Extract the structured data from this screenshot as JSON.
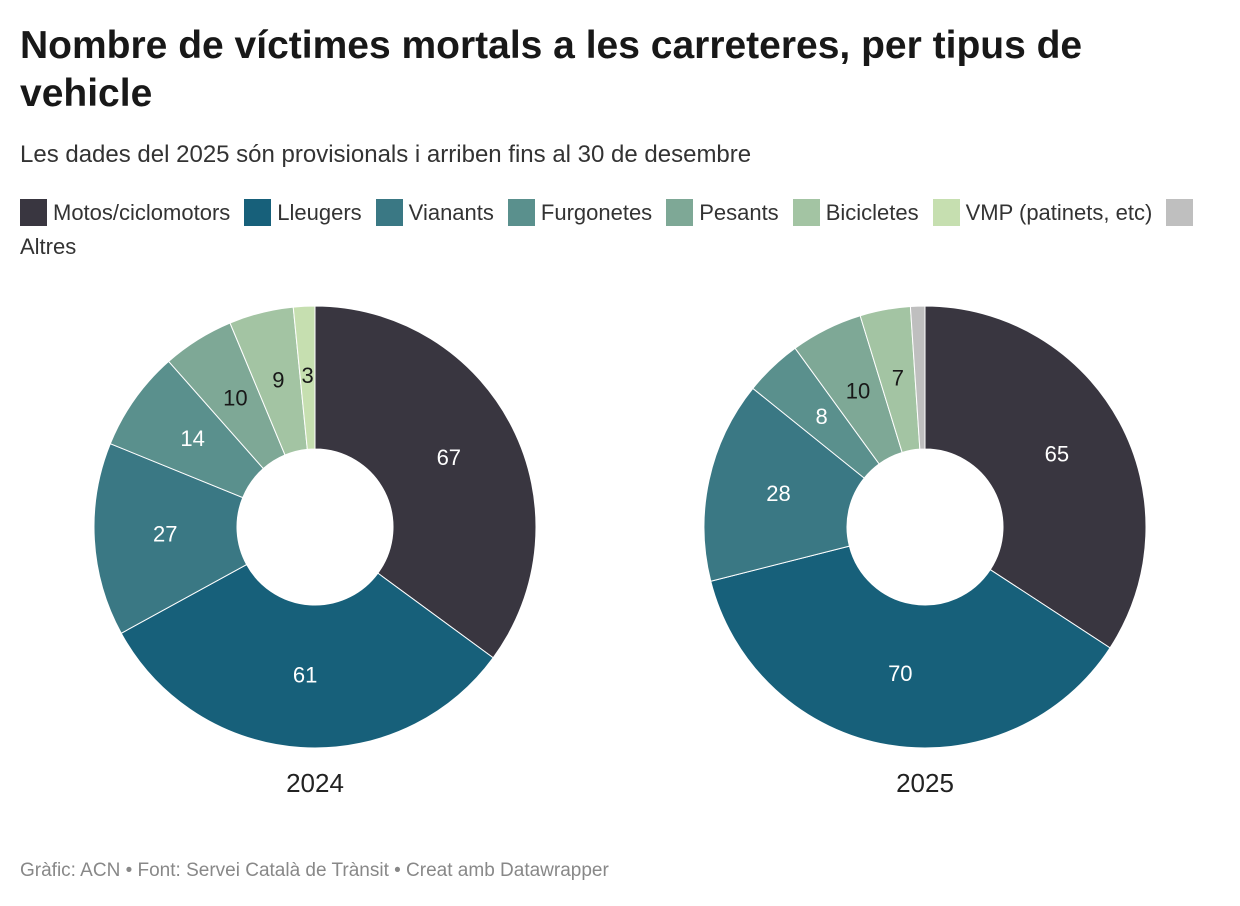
{
  "title": "Nombre de víctimes mortals a les carreteres, per tipus de vehicle",
  "subtitle": "Les dades del 2025 són provisionals i arriben fins al 30 de desembre",
  "legend": [
    {
      "name": "Motos/ciclomotors",
      "color": "#393640"
    },
    {
      "name": "Lleugers",
      "color": "#17607a"
    },
    {
      "name": "Vianants",
      "color": "#3a7884"
    },
    {
      "name": "Furgonetes",
      "color": "#5a908d"
    },
    {
      "name": "Pesants",
      "color": "#7ea896"
    },
    {
      "name": "Bicicletes",
      "color": "#a3c4a3"
    },
    {
      "name": "VMP (patinets, etc)",
      "color": "#c6dfb0"
    },
    {
      "name": "Altres",
      "color": "#bfbfbf"
    }
  ],
  "chart_data": [
    {
      "type": "pie",
      "title": "2024",
      "categories": [
        "Motos/ciclomotors",
        "Lleugers",
        "Vianants",
        "Furgonetes",
        "Pesants",
        "Bicicletes",
        "VMP (patinets, etc)"
      ],
      "values": [
        67,
        61,
        27,
        14,
        10,
        9,
        3
      ]
    },
    {
      "type": "pie",
      "title": "2025",
      "categories": [
        "Motos/ciclomotors",
        "Lleugers",
        "Vianants",
        "Furgonetes",
        "Pesants",
        "Bicicletes",
        "Altres"
      ],
      "values": [
        65,
        70,
        28,
        8,
        10,
        7,
        2
      ]
    }
  ],
  "footer": "Gràfic: ACN • Font: Servei Català de Trànsit • Creat amb Datawrapper"
}
